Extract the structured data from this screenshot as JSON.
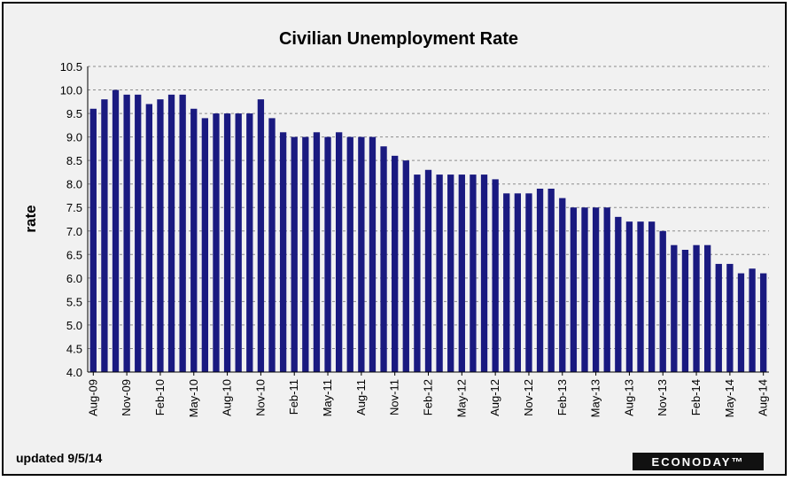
{
  "chart_data": {
    "type": "bar",
    "title": "Civilian Unemployment Rate",
    "ylabel": "rate",
    "xlabel": "",
    "ylim": [
      4.0,
      10.5
    ],
    "ytick_step": 0.5,
    "grid": "horizontal dashed",
    "bar_color": "#1a1a80",
    "categories": [
      "Aug-09",
      "Sep-09",
      "Oct-09",
      "Nov-09",
      "Dec-09",
      "Jan-10",
      "Feb-10",
      "Mar-10",
      "Apr-10",
      "May-10",
      "Jun-10",
      "Jul-10",
      "Aug-10",
      "Sep-10",
      "Oct-10",
      "Nov-10",
      "Dec-10",
      "Jan-11",
      "Feb-11",
      "Mar-11",
      "Apr-11",
      "May-11",
      "Jun-11",
      "Jul-11",
      "Aug-11",
      "Sep-11",
      "Oct-11",
      "Nov-11",
      "Dec-11",
      "Jan-12",
      "Feb-12",
      "Mar-12",
      "Apr-12",
      "May-12",
      "Jun-12",
      "Jul-12",
      "Aug-12",
      "Sep-12",
      "Oct-12",
      "Nov-12",
      "Dec-12",
      "Jan-13",
      "Feb-13",
      "Mar-13",
      "Apr-13",
      "May-13",
      "Jun-13",
      "Jul-13",
      "Aug-13",
      "Sep-13",
      "Oct-13",
      "Nov-13",
      "Dec-13",
      "Jan-14",
      "Feb-14",
      "Mar-14",
      "Apr-14",
      "May-14",
      "Jun-14",
      "Jul-14",
      "Aug-14"
    ],
    "values": [
      9.6,
      9.8,
      10.0,
      9.9,
      9.9,
      9.7,
      9.8,
      9.9,
      9.9,
      9.6,
      9.4,
      9.5,
      9.5,
      9.5,
      9.5,
      9.8,
      9.4,
      9.1,
      9.0,
      9.0,
      9.1,
      9.0,
      9.1,
      9.0,
      9.0,
      9.0,
      8.8,
      8.6,
      8.5,
      8.2,
      8.3,
      8.2,
      8.2,
      8.2,
      8.2,
      8.2,
      8.1,
      7.8,
      7.8,
      7.8,
      7.9,
      7.9,
      7.7,
      7.5,
      7.5,
      7.5,
      7.5,
      7.3,
      7.2,
      7.2,
      7.2,
      7.0,
      6.7,
      6.6,
      6.7,
      6.7,
      6.3,
      6.3,
      6.1,
      6.2,
      6.1
    ],
    "xtick_labels": [
      "Aug-09",
      "Nov-09",
      "Feb-10",
      "May-10",
      "Aug-10",
      "Nov-10",
      "Feb-11",
      "May-11",
      "Aug-11",
      "Nov-11",
      "Feb-12",
      "May-12",
      "Aug-12",
      "Nov-12",
      "Feb-13",
      "May-13",
      "Aug-13",
      "Nov-13",
      "Feb-14",
      "May-14",
      "Aug-14"
    ],
    "xtick_every": 3
  },
  "footer": {
    "updated": "updated 9/5/14",
    "brand": "ECONODAY™"
  }
}
